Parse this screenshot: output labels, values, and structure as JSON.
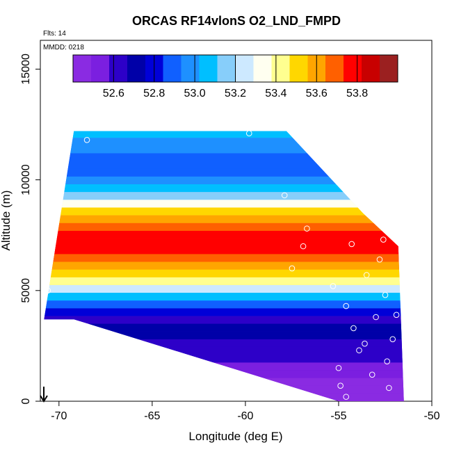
{
  "chart_data": {
    "type": "heatmap",
    "title": "ORCAS RF14vlonS O2_LND_FMPD",
    "annotation_flts": "Flts: 14",
    "annotation_mmdd": "MMDD: 0218",
    "xlabel": "Longitude (deg E)",
    "ylabel": "Altitude (m)",
    "xlim": [
      -71,
      -50
    ],
    "ylim": [
      0,
      16300
    ],
    "x_ticks": [
      -70,
      -65,
      -60,
      -55,
      -50
    ],
    "x_tick_labels": [
      "-70",
      "-65",
      "-60",
      "-55",
      "-50"
    ],
    "y_ticks": [
      0,
      5000,
      10000,
      15000
    ],
    "y_tick_labels": [
      "0",
      "5000",
      "10000",
      "15000"
    ],
    "colorbar": {
      "min": 52.4,
      "max": 54.0,
      "ticks": [
        52.6,
        52.8,
        53.0,
        53.2,
        53.4,
        53.6,
        53.8
      ],
      "tick_labels": [
        "52.6",
        "52.8",
        "53.0",
        "53.2",
        "53.4",
        "53.6",
        "53.8"
      ],
      "colors": [
        "#8a2be2",
        "#7b1fe0",
        "#2d00c8",
        "#0000a8",
        "#0000d8",
        "#1060ff",
        "#1e90ff",
        "#00bfff",
        "#87cefa",
        "#cde9ff",
        "#fffff0",
        "#ffff90",
        "#ffd700",
        "#ffa500",
        "#ff6000",
        "#ff0000",
        "#c80000",
        "#9b2020"
      ]
    },
    "profile": {
      "altitude_m": [
        0,
        1000,
        2000,
        3000,
        3500,
        4000,
        4500,
        5000,
        5500,
        6000,
        6500,
        7000,
        7500,
        8000,
        8500,
        9000,
        10000,
        10500,
        11000,
        11500,
        12200
      ],
      "value": [
        52.45,
        52.5,
        52.62,
        52.72,
        52.62,
        52.85,
        53.05,
        53.3,
        53.5,
        53.65,
        53.78,
        53.8,
        53.72,
        53.6,
        53.45,
        53.2,
        52.95,
        52.85,
        52.92,
        53.0,
        53.15
      ]
    },
    "data_domain": {
      "top_edge": {
        "lon": [
          -69.2,
          -64.5,
          -57.8,
          -53.7,
          -51.8
        ],
        "alt_m": [
          12200,
          12200,
          12200,
          8500,
          7000
        ]
      },
      "bottom_edge": {
        "lon": [
          -70.8,
          -69.2,
          -55.0,
          -52.6,
          -51.5
        ],
        "alt_m": [
          3700,
          3700,
          0,
          0,
          0
        ]
      }
    },
    "observations": [
      {
        "lon": -54.6,
        "alt_m": 200
      },
      {
        "lon": -54.9,
        "alt_m": 700
      },
      {
        "lon": -53.2,
        "alt_m": 1200
      },
      {
        "lon": -52.4,
        "alt_m": 1800
      },
      {
        "lon": -53.9,
        "alt_m": 2300
      },
      {
        "lon": -52.1,
        "alt_m": 2800
      },
      {
        "lon": -54.2,
        "alt_m": 3300
      },
      {
        "lon": -53.0,
        "alt_m": 3800
      },
      {
        "lon": -54.6,
        "alt_m": 4300
      },
      {
        "lon": -52.5,
        "alt_m": 4800
      },
      {
        "lon": -55.3,
        "alt_m": 5200
      },
      {
        "lon": -53.5,
        "alt_m": 5700
      },
      {
        "lon": -57.5,
        "alt_m": 6000
      },
      {
        "lon": -52.8,
        "alt_m": 6400
      },
      {
        "lon": -56.9,
        "alt_m": 7000
      },
      {
        "lon": -54.3,
        "alt_m": 7100
      },
      {
        "lon": -52.6,
        "alt_m": 7300
      },
      {
        "lon": -56.7,
        "alt_m": 7800
      },
      {
        "lon": -57.9,
        "alt_m": 9300
      },
      {
        "lon": -59.8,
        "alt_m": 12100
      },
      {
        "lon": -68.5,
        "alt_m": 11800
      },
      {
        "lon": -70.6,
        "alt_m": 5000
      },
      {
        "lon": -51.9,
        "alt_m": 3900
      },
      {
        "lon": -53.6,
        "alt_m": 2600
      },
      {
        "lon": -52.3,
        "alt_m": 600
      },
      {
        "lon": -55.0,
        "alt_m": 1500
      }
    ]
  }
}
